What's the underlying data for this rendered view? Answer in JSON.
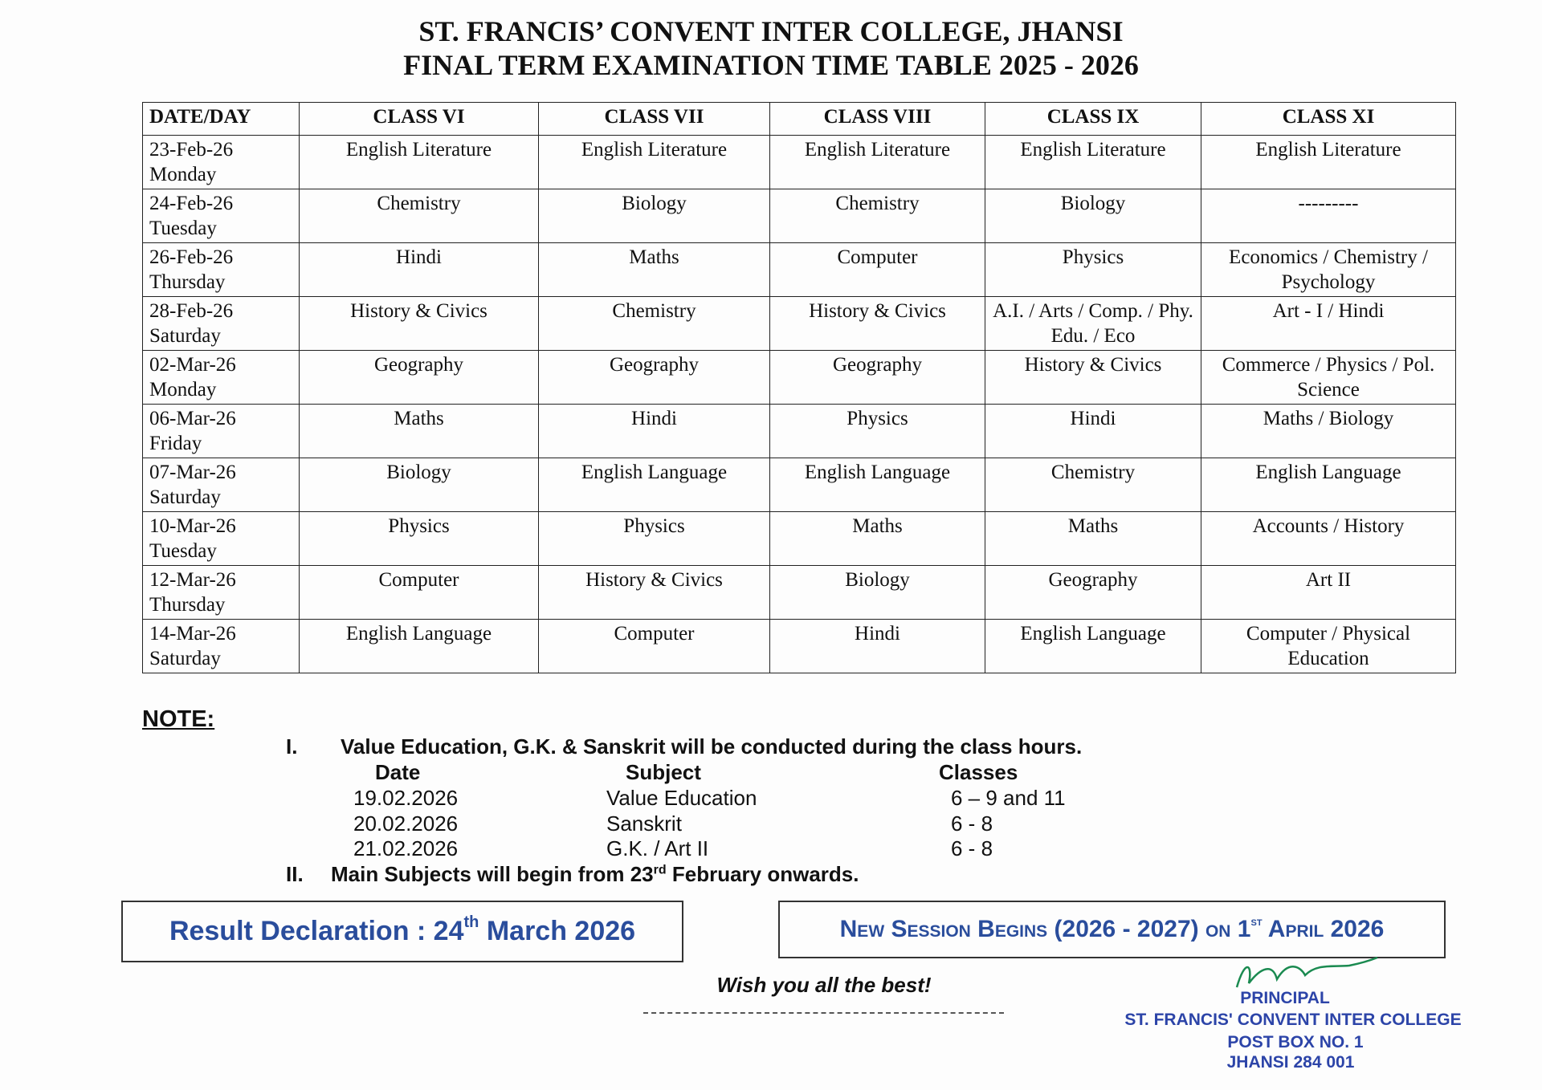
{
  "header": {
    "title": "ST. FRANCIS’ CONVENT INTER COLLEGE, JHANSI",
    "subtitle": "FINAL TERM EXAMINATION TIME TABLE 2025 - 2026"
  },
  "table": {
    "headers": [
      "DATE/DAY",
      "CLASS VI",
      "CLASS VII",
      "CLASS VIII",
      "CLASS IX",
      "CLASS XI"
    ],
    "rows": [
      [
        "23-Feb-26",
        "Monday",
        "English Literature",
        "English Literature",
        "English Literature",
        "English Literature",
        "English Literature"
      ],
      [
        "24-Feb-26",
        "Tuesday",
        "Chemistry",
        "Biology",
        "Chemistry",
        "Biology",
        "---------"
      ],
      [
        "26-Feb-26",
        "Thursday",
        "Hindi",
        "Maths",
        "Computer",
        "Physics",
        "Economics / Chemistry / Psychology"
      ],
      [
        "28-Feb-26",
        "Saturday",
        "History & Civics",
        "Chemistry",
        "History & Civics",
        "A.I. / Arts / Comp. / Phy. Edu. / Eco",
        "Art - I / Hindi"
      ],
      [
        "02-Mar-26",
        "Monday",
        "Geography",
        "Geography",
        "Geography",
        "History & Civics",
        "Commerce / Physics / Pol. Science"
      ],
      [
        "06-Mar-26",
        "Friday",
        "Maths",
        "Hindi",
        "Physics",
        "Hindi",
        "Maths / Biology"
      ],
      [
        "07-Mar-26",
        "Saturday",
        "Biology",
        "English Language",
        "English Language",
        "Chemistry",
        "English Language"
      ],
      [
        "10-Mar-26",
        "Tuesday",
        "Physics",
        "Physics",
        "Maths",
        "Maths",
        "Accounts / History"
      ],
      [
        "12-Mar-26",
        "Thursday",
        "Computer",
        "History & Civics",
        "Biology",
        "Geography",
        "Art II"
      ],
      [
        "14-Mar-26",
        "Saturday",
        "English Language",
        "Computer",
        "Hindi",
        "English Language",
        "Computer / Physical Education"
      ]
    ]
  },
  "note": {
    "title": "NOTE:",
    "item1": {
      "numeral": "I.",
      "text": "Value Education, G.K. & Sanskrit will be conducted during the class hours."
    },
    "schedule": {
      "headers": [
        "Date",
        "Subject",
        "Classes"
      ],
      "rows": [
        [
          "19.02.2026",
          "Value Education",
          "6 – 9 and 11"
        ],
        [
          "20.02.2026",
          "Sanskrit",
          "6 - 8"
        ],
        [
          "21.02.2026",
          "G.K. / Art II",
          "6 - 8"
        ]
      ]
    },
    "item2": {
      "numeral": "II.",
      "text": "Main Subjects will begin from 23",
      "sup": "rd",
      "rest": " February onwards."
    }
  },
  "result": {
    "text": "Result Declaration : 24",
    "sup": "th",
    "rest": " March 2026"
  },
  "session": {
    "text": "New Session Begins (2026 - 2027) on 1",
    "sup": "st",
    "rest": " April 2026"
  },
  "footer": {
    "wish": "Wish you all the best!",
    "stamp": [
      "PRINCIPAL",
      "ST. FRANCIS' CONVENT INTER COLLEGE",
      "POST BOX NO. 1",
      "JHANSI 284 001"
    ]
  }
}
